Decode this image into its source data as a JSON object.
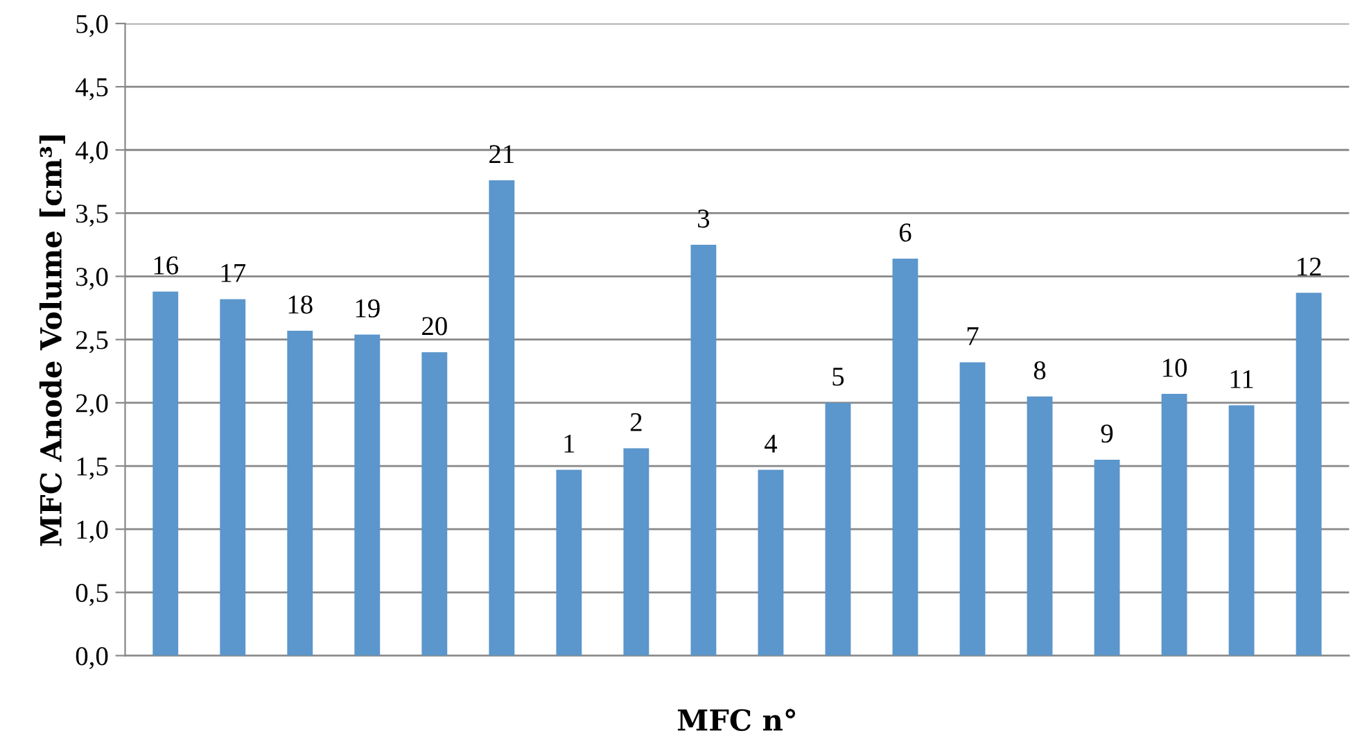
{
  "chart_data": {
    "type": "bar",
    "xlabel": "MFC n°",
    "ylabel": "MFC Anode Volume [cm³]",
    "categories": [
      "16",
      "17",
      "18",
      "19",
      "20",
      "21",
      "1",
      "2",
      "3",
      "4",
      "5",
      "6",
      "7",
      "8",
      "9",
      "10",
      "11",
      "12"
    ],
    "values": [
      2.88,
      2.82,
      2.57,
      2.54,
      2.4,
      3.76,
      1.47,
      1.64,
      3.25,
      1.47,
      2.0,
      3.14,
      2.32,
      2.05,
      1.55,
      2.07,
      1.98,
      2.87
    ],
    "color": "#5b96cc",
    "ylim": [
      0,
      5
    ],
    "yticks": [
      {
        "value": 0,
        "label": "0,0"
      },
      {
        "value": 0.5,
        "label": "0,5"
      },
      {
        "value": 1,
        "label": "1,0"
      },
      {
        "value": 1.5,
        "label": "1,5"
      },
      {
        "value": 2,
        "label": "2,0"
      },
      {
        "value": 2.5,
        "label": "2,5"
      },
      {
        "value": 3,
        "label": "3,0"
      },
      {
        "value": 3.5,
        "label": "3,5"
      },
      {
        "value": 4,
        "label": "4,0"
      },
      {
        "value": 4.5,
        "label": "4,5"
      },
      {
        "value": 5,
        "label": "5,0"
      }
    ],
    "grid": "y",
    "legend": false,
    "tick_labels": "y"
  }
}
